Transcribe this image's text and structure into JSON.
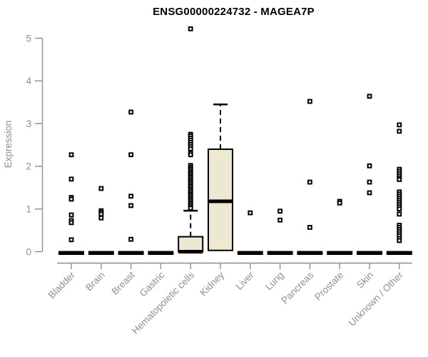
{
  "chart_data": {
    "type": "boxplot",
    "title": "ENSG00000224732 - MAGEA7P",
    "ylabel": "Expression",
    "xlabel": "",
    "ylim": [
      0,
      5
    ],
    "yticks": [
      0,
      1,
      2,
      3,
      4,
      5
    ],
    "grid": false,
    "legend": "none",
    "colors": {
      "box_fill": "#EDE8D2",
      "box_stroke": "#000000",
      "axis": "#8E8E8E",
      "tick_label": "#8E8E8E",
      "title": "#000000",
      "outlier": "#000000",
      "background": "#FFFFFF"
    },
    "categories": [
      "Bladder",
      "Brain",
      "Breast",
      "Gastric",
      "Hematopoietic cells",
      "Kidney",
      "Liver",
      "Lung",
      "Pancreas",
      "Prostate",
      "Skin",
      "Unknown / Other"
    ],
    "boxes": [
      {
        "label": "Bladder",
        "collapsed": true,
        "q1": 0,
        "median": 0,
        "q3": 0,
        "whisker_low": 0,
        "whisker_high": 0,
        "outliers": [
          2.27,
          1.7,
          1.27,
          1.23,
          0.86,
          0.73,
          0.68,
          0.28
        ]
      },
      {
        "label": "Brain",
        "collapsed": true,
        "q1": 0,
        "median": 0,
        "q3": 0,
        "whisker_low": 0,
        "whisker_high": 0,
        "outliers": [
          1.48,
          0.96,
          0.92,
          0.88,
          0.79
        ]
      },
      {
        "label": "Breast",
        "collapsed": true,
        "q1": 0,
        "median": 0,
        "q3": 0,
        "whisker_low": 0,
        "whisker_high": 0,
        "outliers": [
          3.27,
          2.27,
          1.3,
          1.08,
          0.29
        ]
      },
      {
        "label": "Gastric",
        "collapsed": true,
        "q1": 0,
        "median": 0,
        "q3": 0,
        "whisker_low": 0,
        "whisker_high": 0,
        "outliers": []
      },
      {
        "label": "Hematopoietic cells",
        "collapsed": false,
        "q1": 0,
        "median": 0,
        "q3": 0.35,
        "whisker_low": 0,
        "whisker_high": 0.96,
        "outliers": [
          5.22,
          2.75,
          2.71,
          2.66,
          2.61,
          2.56,
          2.51,
          2.46,
          2.41,
          2.31,
          2.27,
          2.02,
          1.98,
          1.94,
          1.9,
          1.86,
          1.82,
          1.78,
          1.74,
          1.7,
          1.66,
          1.62,
          1.58,
          1.54,
          1.5,
          1.46,
          1.42,
          1.38,
          1.34,
          1.3,
          1.26,
          1.22,
          1.18,
          1.14,
          1.1,
          1.06,
          1.02
        ]
      },
      {
        "label": "Kidney",
        "collapsed": false,
        "q1": 0.03,
        "median": 1.18,
        "q3": 2.4,
        "whisker_low": 0.03,
        "whisker_high": 3.45,
        "outliers": []
      },
      {
        "label": "Liver",
        "collapsed": true,
        "q1": 0,
        "median": 0,
        "q3": 0,
        "whisker_low": 0,
        "whisker_high": 0,
        "outliers": [
          0.91
        ]
      },
      {
        "label": "Lung",
        "collapsed": true,
        "q1": 0,
        "median": 0,
        "q3": 0,
        "whisker_low": 0,
        "whisker_high": 0,
        "outliers": [
          0.95,
          0.74
        ]
      },
      {
        "label": "Pancreas",
        "collapsed": true,
        "q1": 0,
        "median": 0,
        "q3": 0,
        "whisker_low": 0,
        "whisker_high": 0,
        "outliers": [
          3.52,
          1.63,
          0.57
        ]
      },
      {
        "label": "Prostate",
        "collapsed": true,
        "q1": 0,
        "median": 0,
        "q3": 0,
        "whisker_low": 0,
        "whisker_high": 0,
        "outliers": [
          1.18,
          1.14
        ]
      },
      {
        "label": "Skin",
        "collapsed": true,
        "q1": 0,
        "median": 0,
        "q3": 0,
        "whisker_low": 0,
        "whisker_high": 0,
        "outliers": [
          3.64,
          2.01,
          1.63,
          1.38
        ]
      },
      {
        "label": "Unknown / Other",
        "collapsed": true,
        "q1": 0,
        "median": 0,
        "q3": 0,
        "whisker_low": 0,
        "whisker_high": 0,
        "outliers": [
          2.97,
          2.82,
          1.93,
          1.88,
          1.83,
          1.78,
          1.73,
          1.69,
          1.4,
          1.35,
          1.3,
          1.25,
          1.2,
          1.15,
          1.1,
          1.05,
          1.0,
          0.88,
          0.62,
          0.57,
          0.52,
          0.47,
          0.42,
          0.37,
          0.31,
          0.26
        ]
      }
    ]
  }
}
